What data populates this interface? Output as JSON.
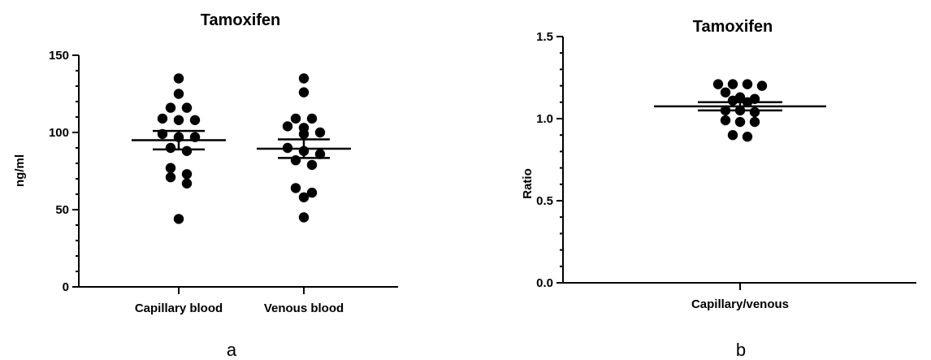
{
  "chart_data": [
    {
      "type": "scatter",
      "title": "Tamoxifen",
      "panel_label": "a",
      "xlabel": "",
      "ylabel": "ng/ml",
      "ylim": [
        0,
        150
      ],
      "yticks": [
        "0",
        "50",
        "100",
        "150"
      ],
      "categories": [
        "Capillary blood",
        "Venous blood"
      ],
      "series": [
        {
          "category": "Capillary blood",
          "values": [
            135,
            125,
            116,
            116,
            109,
            108,
            108,
            99,
            97,
            97,
            90,
            88,
            77,
            73,
            71,
            67,
            44
          ],
          "mean": 95,
          "sem_low": 89,
          "sem_high": 101
        },
        {
          "category": "Venous blood",
          "values": [
            135,
            126,
            109,
            109,
            104,
            103,
            100,
            99,
            90,
            88,
            86,
            82,
            79,
            64,
            61,
            58,
            45
          ],
          "mean": 89.5,
          "sem_low": 83.5,
          "sem_high": 95.5
        }
      ]
    },
    {
      "type": "scatter",
      "title": "Tamoxifen",
      "panel_label": "b",
      "xlabel": "",
      "ylabel": "Ratio",
      "ylim": [
        0,
        1.5
      ],
      "yticks": [
        "0.0",
        "0.5",
        "1.0",
        "1.5"
      ],
      "categories": [
        "Capillary/venous"
      ],
      "series": [
        {
          "category": "Capillary/venous",
          "values": [
            1.21,
            1.2,
            1.21,
            1.21,
            1.16,
            1.1,
            1.11,
            1.12,
            1.13,
            1.04,
            1.05,
            1.05,
            0.99,
            0.98,
            0.98,
            0.89,
            0.9
          ],
          "mean": 1.075,
          "sem_low": 1.05,
          "sem_high": 1.1
        }
      ]
    }
  ]
}
